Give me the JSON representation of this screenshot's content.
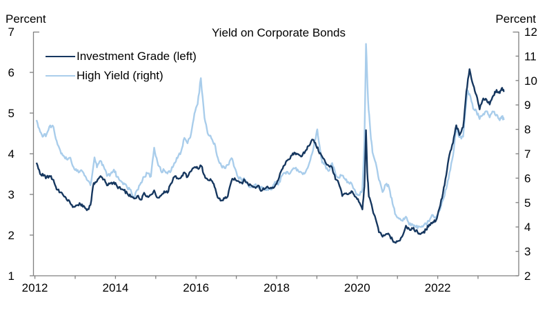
{
  "figure": {
    "title": "Yield on Corporate Bonds",
    "left_axis_title": "Percent",
    "right_axis_title": "Percent"
  },
  "legend": {
    "items": [
      {
        "label": "Investment Grade (left)",
        "color": "#16375f"
      },
      {
        "label": "High Yield (right)",
        "color": "#a9cdeb"
      }
    ]
  },
  "chart_data": {
    "type": "line",
    "title": "Yield on Corporate Bonds",
    "grid": false,
    "legend_position": "top-left",
    "axis_color": "#7f7f7f",
    "x_range": [
      2012,
      2023.95
    ],
    "x_year_ticks": [
      2012,
      2013,
      2014,
      2015,
      2016,
      2017,
      2018,
      2019,
      2020,
      2021,
      2022,
      2023
    ],
    "x_tick_labels": [
      "2012",
      "2014",
      "2016",
      "2018",
      "2020",
      "2022"
    ],
    "left_axis": {
      "label": "Percent",
      "range": [
        1,
        7
      ],
      "ticks": [
        1,
        2,
        3,
        4,
        5,
        6,
        7
      ]
    },
    "right_axis": {
      "label": "Percent",
      "range": [
        2,
        12
      ],
      "ticks": [
        2,
        3,
        4,
        5,
        6,
        7,
        8,
        9,
        10,
        11,
        12
      ]
    },
    "series": [
      {
        "name": "High Yield (right)",
        "axis": "right",
        "color": "#a9cdeb",
        "points": [
          [
            2012.04,
            8.38
          ],
          [
            2012.13,
            7.9
          ],
          [
            2012.21,
            7.72
          ],
          [
            2012.29,
            7.8
          ],
          [
            2012.38,
            8.16
          ],
          [
            2012.46,
            8.1
          ],
          [
            2012.54,
            7.53
          ],
          [
            2012.63,
            7.13
          ],
          [
            2012.71,
            6.92
          ],
          [
            2012.79,
            6.77
          ],
          [
            2012.88,
            6.84
          ],
          [
            2012.96,
            6.45
          ],
          [
            2013.04,
            6.29
          ],
          [
            2013.13,
            6.31
          ],
          [
            2013.21,
            6.2
          ],
          [
            2013.29,
            5.93
          ],
          [
            2013.38,
            5.71
          ],
          [
            2013.48,
            6.85
          ],
          [
            2013.54,
            6.44
          ],
          [
            2013.63,
            6.71
          ],
          [
            2013.71,
            6.46
          ],
          [
            2013.79,
            6.09
          ],
          [
            2013.88,
            6.18
          ],
          [
            2013.96,
            6.35
          ],
          [
            2014.04,
            6.05
          ],
          [
            2014.13,
            5.89
          ],
          [
            2014.21,
            5.79
          ],
          [
            2014.29,
            5.62
          ],
          [
            2014.38,
            5.52
          ],
          [
            2014.46,
            5.22
          ],
          [
            2014.54,
            5.52
          ],
          [
            2014.63,
            5.81
          ],
          [
            2014.71,
            6.05
          ],
          [
            2014.79,
            6.2
          ],
          [
            2014.88,
            6.07
          ],
          [
            2014.96,
            7.25
          ],
          [
            2015.04,
            6.68
          ],
          [
            2015.13,
            6.29
          ],
          [
            2015.21,
            6.32
          ],
          [
            2015.29,
            6.19
          ],
          [
            2015.38,
            6.3
          ],
          [
            2015.46,
            6.62
          ],
          [
            2015.54,
            6.82
          ],
          [
            2015.63,
            7.1
          ],
          [
            2015.71,
            7.65
          ],
          [
            2015.79,
            7.43
          ],
          [
            2015.88,
            7.85
          ],
          [
            2015.96,
            8.65
          ],
          [
            2016.04,
            9.03
          ],
          [
            2016.12,
            10.1
          ],
          [
            2016.21,
            8.46
          ],
          [
            2016.29,
            7.83
          ],
          [
            2016.38,
            7.63
          ],
          [
            2016.46,
            7.42
          ],
          [
            2016.54,
            6.84
          ],
          [
            2016.63,
            6.5
          ],
          [
            2016.71,
            6.41
          ],
          [
            2016.79,
            6.54
          ],
          [
            2016.88,
            6.82
          ],
          [
            2016.96,
            6.42
          ],
          [
            2017.04,
            6.05
          ],
          [
            2017.13,
            5.92
          ],
          [
            2017.21,
            5.93
          ],
          [
            2017.29,
            5.75
          ],
          [
            2017.38,
            5.63
          ],
          [
            2017.46,
            5.72
          ],
          [
            2017.54,
            5.61
          ],
          [
            2017.63,
            5.65
          ],
          [
            2017.71,
            5.53
          ],
          [
            2017.79,
            5.51
          ],
          [
            2017.88,
            5.54
          ],
          [
            2017.96,
            5.85
          ],
          [
            2018.04,
            5.73
          ],
          [
            2018.13,
            6.1
          ],
          [
            2018.21,
            6.22
          ],
          [
            2018.29,
            6.2
          ],
          [
            2018.38,
            6.33
          ],
          [
            2018.46,
            6.4
          ],
          [
            2018.54,
            6.29
          ],
          [
            2018.63,
            6.21
          ],
          [
            2018.71,
            6.22
          ],
          [
            2018.79,
            6.5
          ],
          [
            2018.88,
            7.0
          ],
          [
            2018.96,
            7.58
          ],
          [
            2019.01,
            8.0
          ],
          [
            2019.08,
            7.16
          ],
          [
            2019.13,
            6.63
          ],
          [
            2019.21,
            6.52
          ],
          [
            2019.29,
            6.29
          ],
          [
            2019.38,
            6.62
          ],
          [
            2019.46,
            6.19
          ],
          [
            2019.54,
            6.02
          ],
          [
            2019.63,
            6.11
          ],
          [
            2019.71,
            5.93
          ],
          [
            2019.79,
            5.81
          ],
          [
            2019.88,
            5.71
          ],
          [
            2019.96,
            5.42
          ],
          [
            2020.04,
            5.31
          ],
          [
            2020.13,
            5.53
          ],
          [
            2020.18,
            7.5
          ],
          [
            2020.22,
            11.5
          ],
          [
            2020.27,
            9.2
          ],
          [
            2020.33,
            7.86
          ],
          [
            2020.38,
            7.06
          ],
          [
            2020.46,
            6.63
          ],
          [
            2020.54,
            5.93
          ],
          [
            2020.63,
            5.43
          ],
          [
            2020.71,
            5.74
          ],
          [
            2020.79,
            5.63
          ],
          [
            2020.88,
            4.94
          ],
          [
            2020.96,
            4.49
          ],
          [
            2021.04,
            4.34
          ],
          [
            2021.13,
            4.25
          ],
          [
            2021.21,
            4.42
          ],
          [
            2021.29,
            4.09
          ],
          [
            2021.38,
            4.1
          ],
          [
            2021.46,
            3.99
          ],
          [
            2021.54,
            4.02
          ],
          [
            2021.63,
            4.01
          ],
          [
            2021.71,
            4.13
          ],
          [
            2021.79,
            4.23
          ],
          [
            2021.88,
            4.49
          ],
          [
            2021.96,
            4.33
          ],
          [
            2022.04,
            4.65
          ],
          [
            2022.13,
            5.1
          ],
          [
            2022.21,
            5.56
          ],
          [
            2022.29,
            6.22
          ],
          [
            2022.38,
            6.93
          ],
          [
            2022.46,
            8.05
          ],
          [
            2022.54,
            7.68
          ],
          [
            2022.63,
            7.7
          ],
          [
            2022.74,
            9.6
          ],
          [
            2022.79,
            9.45
          ],
          [
            2022.88,
            8.84
          ],
          [
            2022.96,
            8.74
          ],
          [
            2023.04,
            8.42
          ],
          [
            2023.13,
            8.63
          ],
          [
            2023.21,
            8.74
          ],
          [
            2023.29,
            8.49
          ],
          [
            2023.38,
            8.72
          ],
          [
            2023.46,
            8.6
          ],
          [
            2023.54,
            8.37
          ],
          [
            2023.6,
            8.5
          ],
          [
            2023.64,
            8.38
          ]
        ]
      },
      {
        "name": "Investment Grade (left)",
        "axis": "left",
        "color": "#16375f",
        "points": [
          [
            2012.04,
            3.78
          ],
          [
            2012.13,
            3.5
          ],
          [
            2012.21,
            3.46
          ],
          [
            2012.29,
            3.42
          ],
          [
            2012.38,
            3.44
          ],
          [
            2012.46,
            3.36
          ],
          [
            2012.54,
            3.12
          ],
          [
            2012.63,
            3.05
          ],
          [
            2012.71,
            2.97
          ],
          [
            2012.79,
            2.87
          ],
          [
            2012.88,
            2.78
          ],
          [
            2012.96,
            2.7
          ],
          [
            2013.04,
            2.73
          ],
          [
            2013.13,
            2.76
          ],
          [
            2013.21,
            2.72
          ],
          [
            2013.29,
            2.61
          ],
          [
            2013.38,
            2.74
          ],
          [
            2013.46,
            3.28
          ],
          [
            2013.54,
            3.32
          ],
          [
            2013.63,
            3.45
          ],
          [
            2013.71,
            3.37
          ],
          [
            2013.79,
            3.22
          ],
          [
            2013.88,
            3.28
          ],
          [
            2013.96,
            3.3
          ],
          [
            2014.04,
            3.2
          ],
          [
            2014.13,
            3.13
          ],
          [
            2014.21,
            3.1
          ],
          [
            2014.29,
            3.03
          ],
          [
            2014.38,
            2.94
          ],
          [
            2014.46,
            2.9
          ],
          [
            2014.54,
            2.96
          ],
          [
            2014.63,
            2.87
          ],
          [
            2014.71,
            3.04
          ],
          [
            2014.79,
            2.96
          ],
          [
            2014.88,
            2.99
          ],
          [
            2014.96,
            3.1
          ],
          [
            2015.04,
            2.92
          ],
          [
            2015.13,
            2.97
          ],
          [
            2015.21,
            3.08
          ],
          [
            2015.29,
            3.04
          ],
          [
            2015.38,
            3.27
          ],
          [
            2015.46,
            3.43
          ],
          [
            2015.54,
            3.4
          ],
          [
            2015.63,
            3.42
          ],
          [
            2015.71,
            3.54
          ],
          [
            2015.79,
            3.43
          ],
          [
            2015.88,
            3.57
          ],
          [
            2015.96,
            3.67
          ],
          [
            2016.04,
            3.64
          ],
          [
            2016.13,
            3.7
          ],
          [
            2016.21,
            3.47
          ],
          [
            2016.29,
            3.36
          ],
          [
            2016.38,
            3.34
          ],
          [
            2016.46,
            3.18
          ],
          [
            2016.54,
            2.92
          ],
          [
            2016.63,
            2.85
          ],
          [
            2016.71,
            2.9
          ],
          [
            2016.79,
            2.96
          ],
          [
            2016.88,
            3.33
          ],
          [
            2016.96,
            3.4
          ],
          [
            2017.04,
            3.33
          ],
          [
            2017.13,
            3.29
          ],
          [
            2017.21,
            3.35
          ],
          [
            2017.29,
            3.26
          ],
          [
            2017.38,
            3.21
          ],
          [
            2017.46,
            3.18
          ],
          [
            2017.54,
            3.22
          ],
          [
            2017.63,
            3.09
          ],
          [
            2017.71,
            3.14
          ],
          [
            2017.79,
            3.17
          ],
          [
            2017.88,
            3.15
          ],
          [
            2017.96,
            3.21
          ],
          [
            2018.04,
            3.35
          ],
          [
            2018.13,
            3.61
          ],
          [
            2018.21,
            3.73
          ],
          [
            2018.29,
            3.86
          ],
          [
            2018.38,
            3.96
          ],
          [
            2018.46,
            4.02
          ],
          [
            2018.54,
            3.99
          ],
          [
            2018.63,
            3.94
          ],
          [
            2018.71,
            4.06
          ],
          [
            2018.79,
            4.19
          ],
          [
            2018.88,
            4.35
          ],
          [
            2018.96,
            4.27
          ],
          [
            2019.04,
            4.07
          ],
          [
            2019.13,
            3.93
          ],
          [
            2019.21,
            3.79
          ],
          [
            2019.29,
            3.71
          ],
          [
            2019.38,
            3.66
          ],
          [
            2019.46,
            3.37
          ],
          [
            2019.54,
            3.28
          ],
          [
            2019.63,
            2.96
          ],
          [
            2019.71,
            3.02
          ],
          [
            2019.79,
            3.01
          ],
          [
            2019.88,
            3.07
          ],
          [
            2019.96,
            2.94
          ],
          [
            2020.04,
            2.82
          ],
          [
            2020.13,
            2.63
          ],
          [
            2020.18,
            3.2
          ],
          [
            2020.22,
            4.58
          ],
          [
            2020.25,
            3.55
          ],
          [
            2020.29,
            2.95
          ],
          [
            2020.38,
            2.64
          ],
          [
            2020.46,
            2.39
          ],
          [
            2020.54,
            2.07
          ],
          [
            2020.63,
            1.96
          ],
          [
            2020.71,
            2.02
          ],
          [
            2020.79,
            2.02
          ],
          [
            2020.88,
            1.87
          ],
          [
            2020.96,
            1.81
          ],
          [
            2021.04,
            1.86
          ],
          [
            2021.13,
            1.99
          ],
          [
            2021.21,
            2.23
          ],
          [
            2021.29,
            2.15
          ],
          [
            2021.38,
            2.16
          ],
          [
            2021.46,
            2.11
          ],
          [
            2021.54,
            2.04
          ],
          [
            2021.63,
            2.06
          ],
          [
            2021.71,
            2.13
          ],
          [
            2021.79,
            2.26
          ],
          [
            2021.88,
            2.32
          ],
          [
            2021.96,
            2.37
          ],
          [
            2022.04,
            2.65
          ],
          [
            2022.13,
            3.03
          ],
          [
            2022.21,
            3.47
          ],
          [
            2022.29,
            3.97
          ],
          [
            2022.38,
            4.27
          ],
          [
            2022.46,
            4.7
          ],
          [
            2022.54,
            4.46
          ],
          [
            2022.63,
            4.65
          ],
          [
            2022.71,
            5.53
          ],
          [
            2022.79,
            6.08
          ],
          [
            2022.88,
            5.69
          ],
          [
            2022.96,
            5.44
          ],
          [
            2023.04,
            5.09
          ],
          [
            2023.13,
            5.36
          ],
          [
            2023.21,
            5.33
          ],
          [
            2023.29,
            5.21
          ],
          [
            2023.38,
            5.43
          ],
          [
            2023.46,
            5.57
          ],
          [
            2023.54,
            5.49
          ],
          [
            2023.6,
            5.62
          ],
          [
            2023.64,
            5.52
          ]
        ]
      }
    ]
  }
}
